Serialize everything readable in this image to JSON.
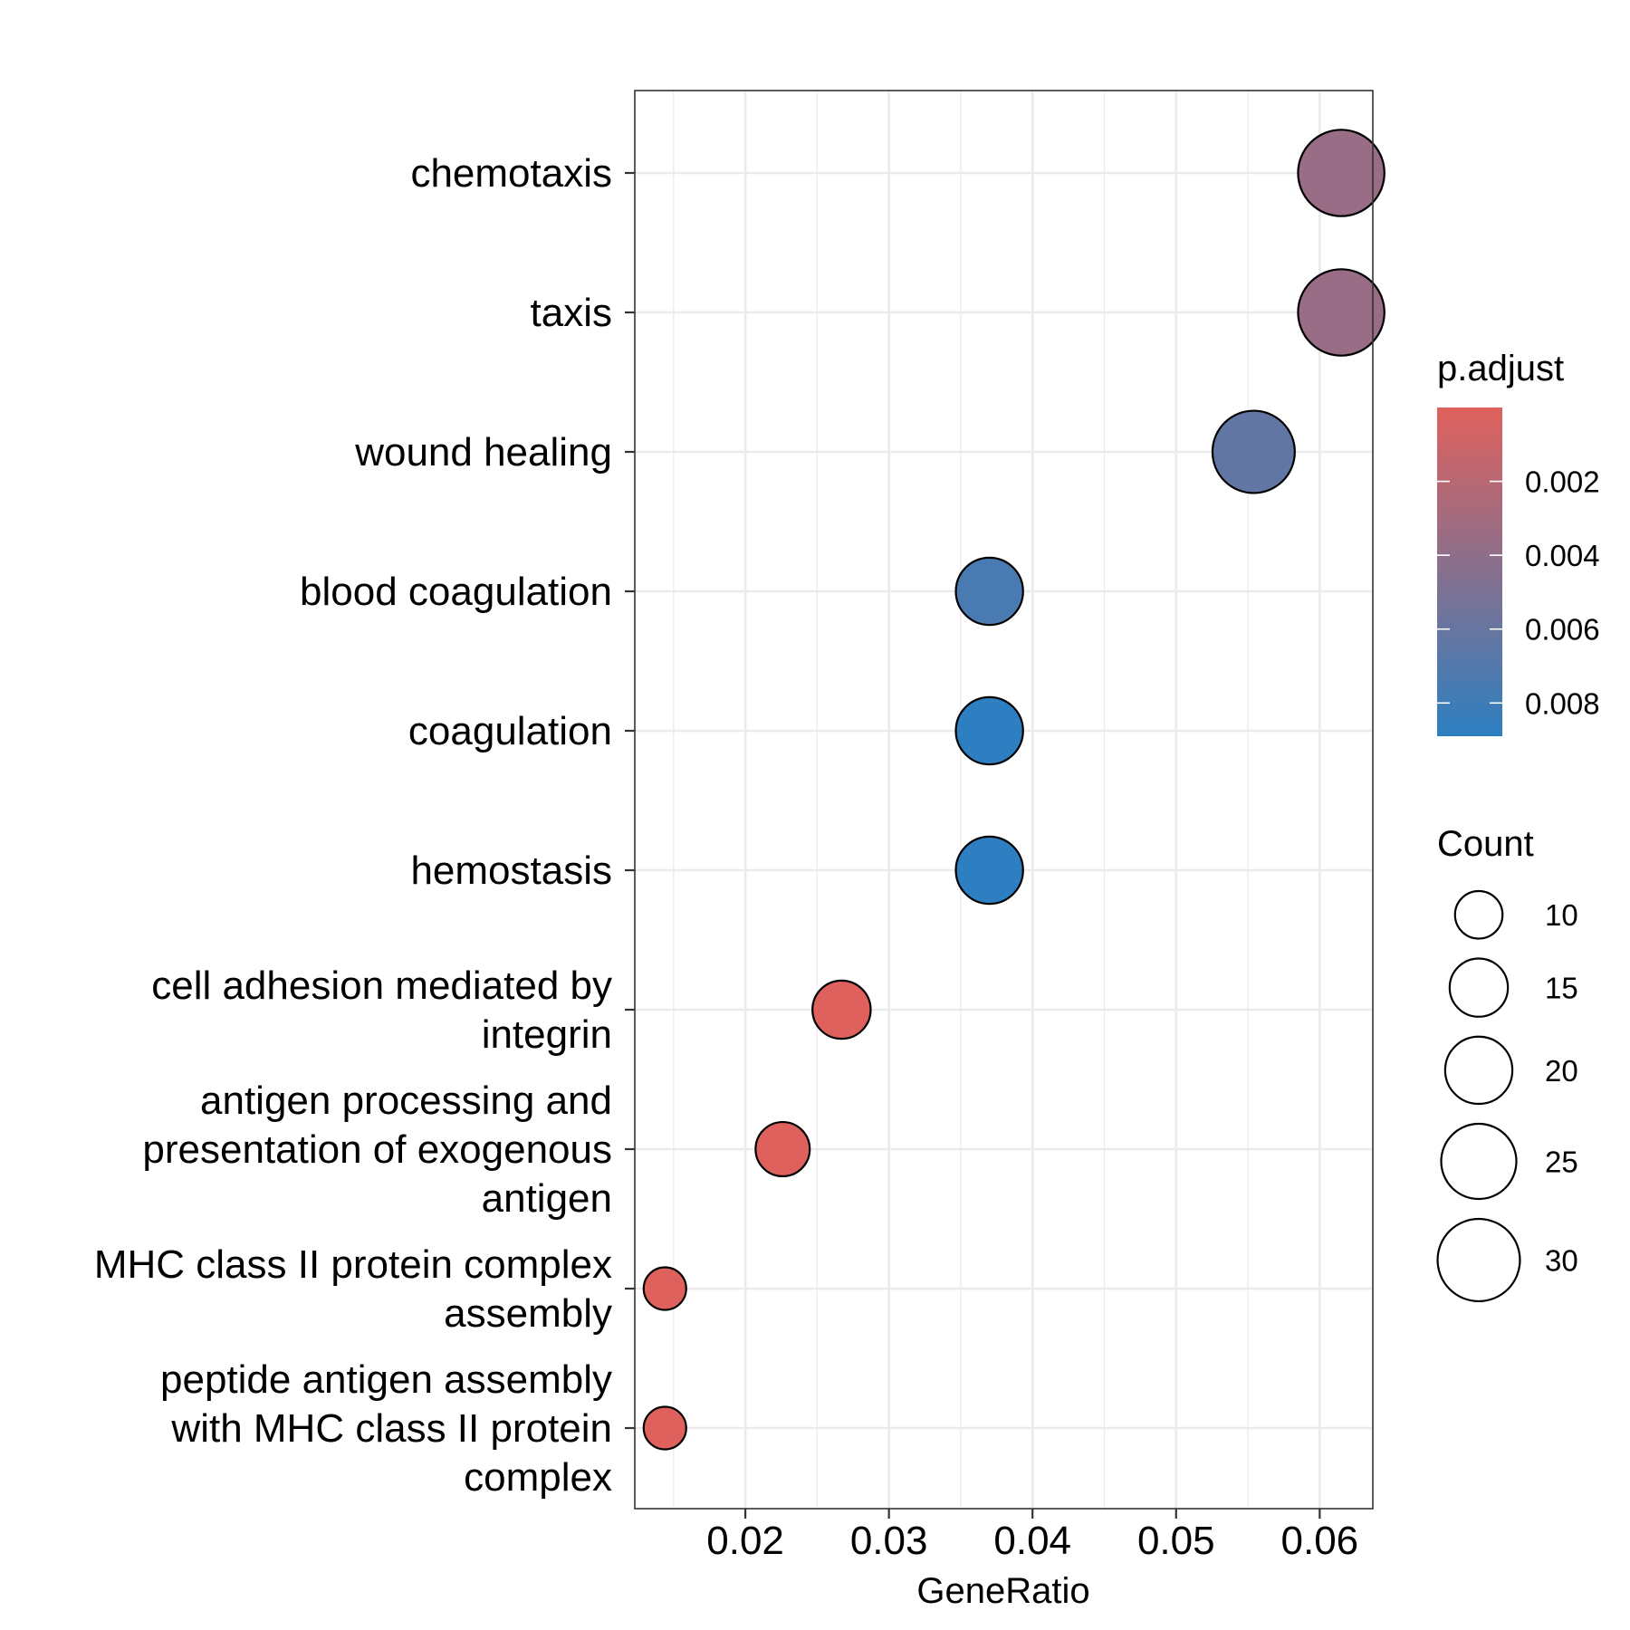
{
  "chart_data": {
    "type": "scatter",
    "xlabel": "GeneRatio",
    "ylabel": "",
    "title": "",
    "xlim": [
      0.0123,
      0.0637
    ],
    "x_ticks": [
      "0.02",
      "0.03",
      "0.04",
      "0.05",
      "0.06"
    ],
    "x_tick_values": [
      0.02,
      0.03,
      0.04,
      0.05,
      0.06
    ],
    "grid": true,
    "legend_position": "right",
    "categories": [
      "chemotaxis",
      "taxis",
      "wound healing",
      "blood coagulation",
      "coagulation",
      "hemostasis",
      "cell adhesion mediated by\nintegrin",
      "antigen processing and\npresentation of exogenous\nantigen",
      "MHC class II protein complex\nassembly",
      "peptide antigen assembly\nwith MHC class II protein\ncomplex"
    ],
    "points": [
      {
        "term": "chemotaxis",
        "gene_ratio": 0.0615,
        "count": 33,
        "p_adjust": 0.0036
      },
      {
        "term": "taxis",
        "gene_ratio": 0.0615,
        "count": 33,
        "p_adjust": 0.0036
      },
      {
        "term": "wound healing",
        "gene_ratio": 0.0554,
        "count": 30,
        "p_adjust": 0.0063
      },
      {
        "term": "blood coagulation",
        "gene_ratio": 0.037,
        "count": 20,
        "p_adjust": 0.0075
      },
      {
        "term": "coagulation",
        "gene_ratio": 0.037,
        "count": 20,
        "p_adjust": 0.0089
      },
      {
        "term": "hemostasis",
        "gene_ratio": 0.037,
        "count": 20,
        "p_adjust": 0.0089
      },
      {
        "term": "cell adhesion mediated by integrin",
        "gene_ratio": 0.0267,
        "count": 15,
        "p_adjust": 0.0001
      },
      {
        "term": "antigen processing and presentation of exogenous antigen",
        "gene_ratio": 0.0226,
        "count": 13,
        "p_adjust": 0.0001
      },
      {
        "term": "MHC class II protein complex assembly",
        "gene_ratio": 0.0144,
        "count": 8,
        "p_adjust": 0.0001
      },
      {
        "term": "peptide antigen assembly with MHC class II protein complex",
        "gene_ratio": 0.0144,
        "count": 8,
        "p_adjust": 0.0001
      }
    ],
    "color_legend": {
      "title": "p.adjust",
      "ticks": [
        "0.002",
        "0.004",
        "0.006",
        "0.008"
      ],
      "tick_values": [
        0.002,
        0.004,
        0.006,
        0.008
      ],
      "range": [
        0.0,
        0.0089
      ],
      "low_color": "#e0615c",
      "high_color": "#2d7fc1"
    },
    "size_legend": {
      "title": "Count",
      "labels": [
        "10",
        "15",
        "20",
        "25",
        "30"
      ],
      "values": [
        10,
        15,
        20,
        25,
        30
      ]
    }
  }
}
